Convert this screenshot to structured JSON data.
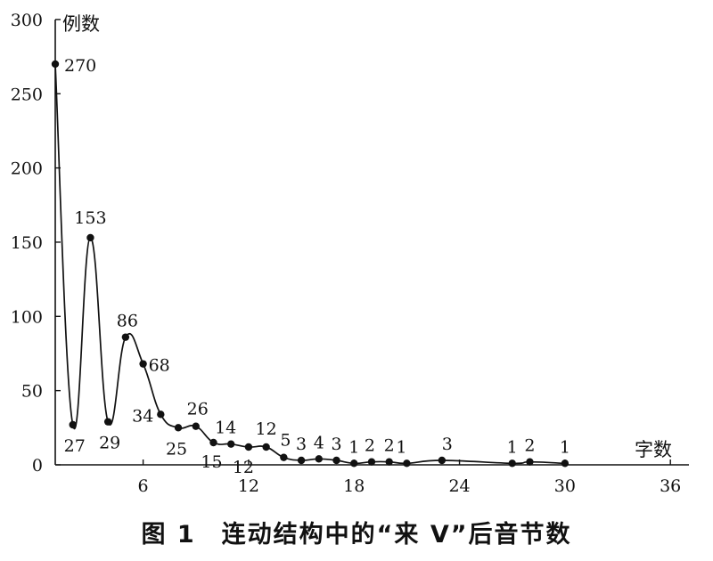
{
  "chart_data": {
    "type": "line",
    "title": "",
    "ylabel": "例数",
    "xlabel": "字数",
    "xlim": [
      1,
      36
    ],
    "ylim": [
      0,
      300
    ],
    "xticks": [
      "6",
      "12",
      "18",
      "24",
      "30",
      "36"
    ],
    "yticks": [
      "0",
      "50",
      "100",
      "150",
      "200",
      "250",
      "300"
    ],
    "grid": false,
    "legend": "none",
    "x": [
      1,
      2,
      3,
      4,
      5,
      6,
      7,
      8,
      9,
      10,
      11,
      12,
      13,
      14,
      15,
      16,
      17,
      18,
      19,
      20,
      21,
      23,
      27,
      28,
      30
    ],
    "values": [
      270,
      27,
      153,
      29,
      86,
      68,
      34,
      25,
      26,
      15,
      14,
      12,
      12,
      5,
      3,
      4,
      3,
      1,
      2,
      2,
      1,
      3,
      1,
      2,
      1
    ],
    "labels": [
      "270",
      "27",
      "153",
      "29",
      "86",
      "68",
      "34",
      "25",
      "26",
      "15",
      "14",
      "12",
      "12",
      "5",
      "3",
      "4",
      "3",
      "1",
      "2",
      "2",
      "1",
      "3",
      "1",
      "2",
      "1"
    ]
  },
  "caption": "图 1　连动结构中的“来 V”后音节数",
  "colors": {
    "line": "#111111",
    "marker": "#111111"
  }
}
